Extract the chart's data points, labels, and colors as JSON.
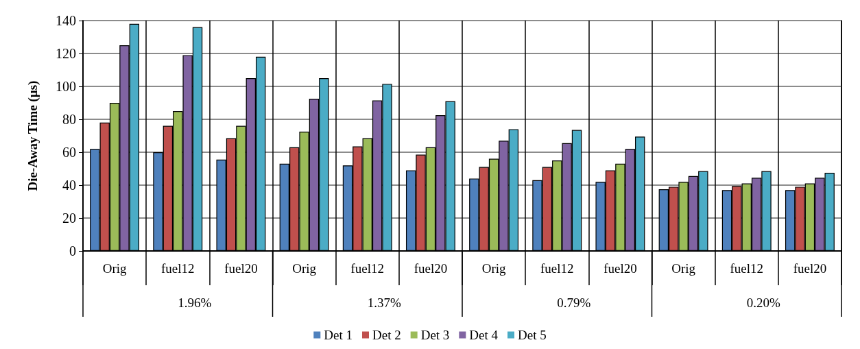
{
  "chart_data": {
    "type": "bar",
    "ylabel": "Die-Away Time (µs)",
    "categories": [
      "Orig",
      "fuel12",
      "fuel20",
      "Orig",
      "fuel12",
      "fuel20",
      "Orig",
      "fuel12",
      "fuel20",
      "Orig",
      "fuel12",
      "fuel20"
    ],
    "annotations": [
      "1.96%",
      "1.37%",
      "0.79%",
      "0.20%"
    ],
    "series": [
      {
        "name": "Det 1",
        "color": "#4f81bd",
        "values": [
          62,
          60,
          55.5,
          53,
          52,
          49,
          44,
          43,
          42,
          37.5,
          37,
          37
        ]
      },
      {
        "name": "Det 2",
        "color": "#c0504d",
        "values": [
          78,
          76,
          68.5,
          63,
          63.5,
          58.5,
          51,
          51,
          49,
          39,
          39.5,
          39
        ]
      },
      {
        "name": "Det 3",
        "color": "#9bbb59",
        "values": [
          90,
          85,
          76,
          72.5,
          68.5,
          63,
          56,
          55,
          53,
          42,
          41,
          41
        ]
      },
      {
        "name": "Det 4",
        "color": "#8064a2",
        "values": [
          125,
          119,
          105,
          92.5,
          91.5,
          82.5,
          67,
          65.5,
          62,
          45.5,
          44.5,
          44.5
        ]
      },
      {
        "name": "Det 5",
        "color": "#4bacc6",
        "values": [
          138,
          136,
          118,
          105,
          101.5,
          91,
          74,
          73.5,
          69.5,
          48.5,
          48.5,
          47.5
        ]
      }
    ],
    "ylim": [
      0,
      140
    ],
    "yticks": [
      0,
      20,
      40,
      60,
      80,
      100,
      120,
      140
    ],
    "grid": "y",
    "legend": "bottom"
  }
}
